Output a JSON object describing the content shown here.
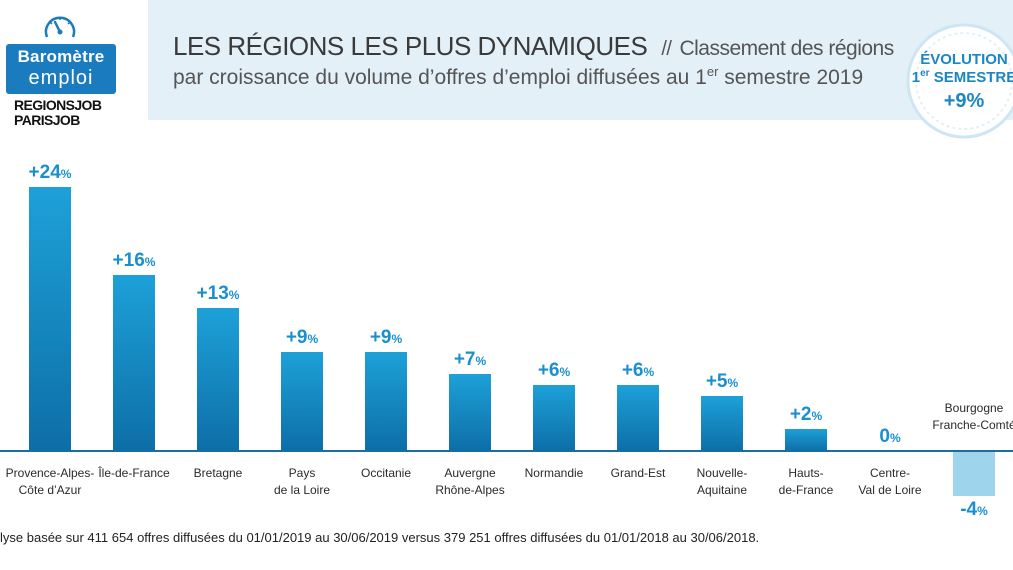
{
  "logo": {
    "line1": "Baromètre",
    "line2": "emploi",
    "brand1": "REGIONSJOB",
    "brand2": "PARISJOB"
  },
  "header": {
    "title": "LES RÉGIONS LES PLUS DYNAMIQUES",
    "separator": "//",
    "subtitle_part1": "Classement des régions",
    "subtitle_part2_pre": "par croissance du volume d’offres d’emploi diffusées au 1",
    "subtitle_part2_sup": "er",
    "subtitle_part2_post": " semestre 2019"
  },
  "badge": {
    "line1": "ÉVOLUTION",
    "line2_num": "1",
    "line2_sup": "er",
    "line2_rest": " SEMESTRE",
    "value": "+9%"
  },
  "footnote": "lyse basée sur 411 654 offres diffusées du 01/01/2019 au 30/06/2019 versus 379 251 offres diffusées du 01/01/2018 au 30/06/2018.",
  "colors": {
    "bar_top": "#1da1d8",
    "bar_bottom": "#0e6ea7",
    "neg_bar": "#9fd5ec",
    "label": "#1a8fcf",
    "axis": "#1a6f9e",
    "header_band": "#e3f0f8",
    "logo_blue": "#1a7bbf"
  },
  "chart_data": {
    "type": "bar",
    "title": "LES RÉGIONS LES PLUS DYNAMIQUES",
    "xlabel": "",
    "ylabel": "",
    "ylim": [
      -4,
      24
    ],
    "grid": false,
    "categories": [
      [
        "Provence-Alpes-",
        "Côte d’Azur"
      ],
      [
        "Île-de-France"
      ],
      [
        "Bretagne"
      ],
      [
        "Pays",
        "de la Loire"
      ],
      [
        "Occitanie"
      ],
      [
        "Auvergne",
        "Rhône-Alpes"
      ],
      [
        "Normandie"
      ],
      [
        "Grand-Est"
      ],
      [
        "Nouvelle-",
        "Aquitaine"
      ],
      [
        "Hauts-",
        "de-France"
      ],
      [
        "Centre-",
        "Val de Loire"
      ],
      [
        "Bourgogne",
        "Franche-Comté"
      ]
    ],
    "values": [
      24,
      16,
      13,
      9,
      9,
      7,
      6,
      6,
      5,
      2,
      0,
      -4
    ],
    "value_labels": [
      {
        "num": "+24",
        "pct": "%"
      },
      {
        "num": "+16",
        "pct": "%"
      },
      {
        "num": "+13",
        "pct": "%"
      },
      {
        "num": "+9",
        "pct": "%"
      },
      {
        "num": "+9",
        "pct": "%"
      },
      {
        "num": "+7",
        "pct": "%"
      },
      {
        "num": "+6",
        "pct": "%"
      },
      {
        "num": "+6",
        "pct": "%"
      },
      {
        "num": "+5",
        "pct": "%"
      },
      {
        "num": "+2",
        "pct": "%"
      },
      {
        "num": "0",
        "pct": "%"
      },
      {
        "num": "-4",
        "pct": "%"
      }
    ]
  }
}
